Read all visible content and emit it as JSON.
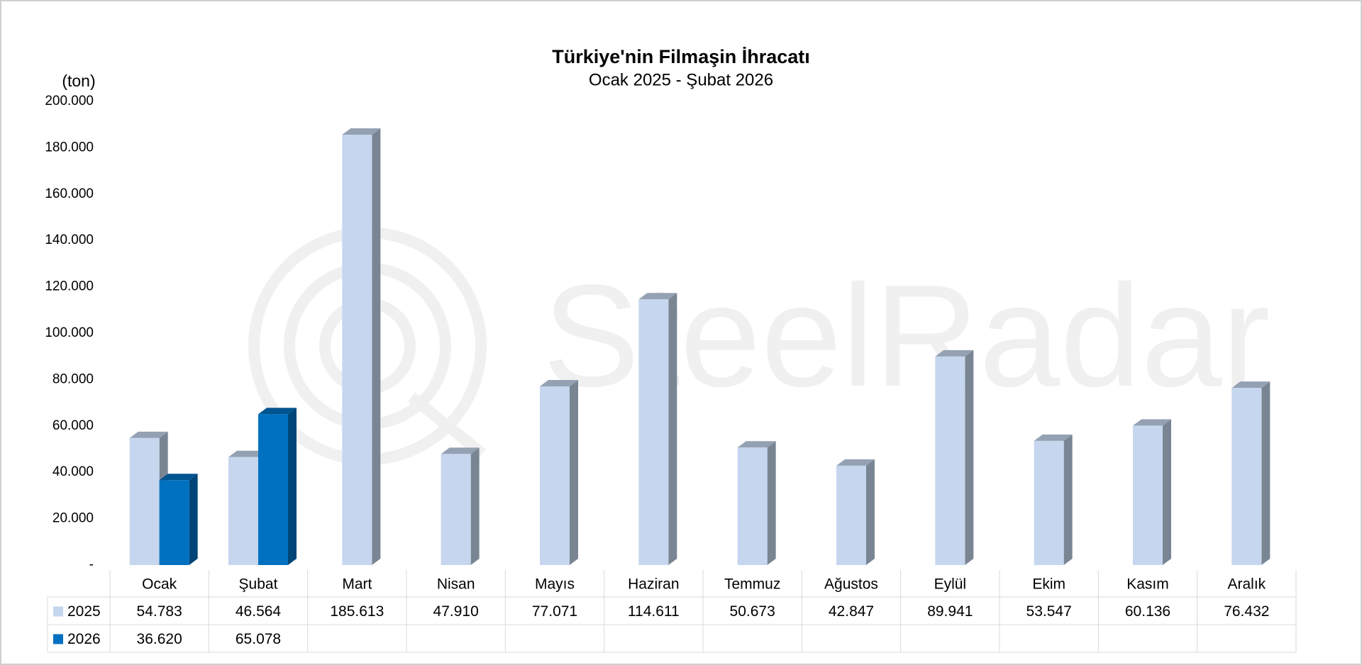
{
  "chart_data": {
    "type": "bar",
    "title": "Türkiye'nin Filmaşin İhracatı",
    "subtitle": "Ocak 2025 - Şubat 2026",
    "y_label": "(ton)",
    "watermark": "SteelRadar",
    "categories": [
      "Ocak",
      "Şubat",
      "Mart",
      "Nisan",
      "Mayıs",
      "Haziran",
      "Temmuz",
      "Ağustos",
      "Eylül",
      "Ekim",
      "Kasım",
      "Aralık"
    ],
    "series": [
      {
        "name": "2025",
        "color": "#c5d6ee",
        "values": [
          54783,
          46564,
          185613,
          47910,
          77071,
          114611,
          50673,
          42847,
          89941,
          53547,
          60136,
          76432
        ],
        "value_labels": [
          "54.783",
          "46.564",
          "185.613",
          "47.910",
          "77.071",
          "114.611",
          "50.673",
          "42.847",
          "89.941",
          "53.547",
          "60.136",
          "76.432"
        ]
      },
      {
        "name": "2026",
        "color": "#0070c0",
        "values": [
          36620,
          65078,
          null,
          null,
          null,
          null,
          null,
          null,
          null,
          null,
          null,
          null
        ],
        "value_labels": [
          "36.620",
          "65.078",
          null,
          null,
          null,
          null,
          null,
          null,
          null,
          null,
          null,
          null
        ]
      }
    ],
    "ylim": [
      0,
      200000
    ],
    "yticks": [
      {
        "value": 0,
        "label": "-"
      },
      {
        "value": 20000,
        "label": "20.000"
      },
      {
        "value": 40000,
        "label": "40.000"
      },
      {
        "value": 60000,
        "label": "60.000"
      },
      {
        "value": 80000,
        "label": "80.000"
      },
      {
        "value": 100000,
        "label": "100.000"
      },
      {
        "value": 120000,
        "label": "120.000"
      },
      {
        "value": 140000,
        "label": "140.000"
      },
      {
        "value": 160000,
        "label": "160.000"
      },
      {
        "value": 180000,
        "label": "180.000"
      },
      {
        "value": 200000,
        "label": "200.000"
      }
    ],
    "grid": false
  }
}
